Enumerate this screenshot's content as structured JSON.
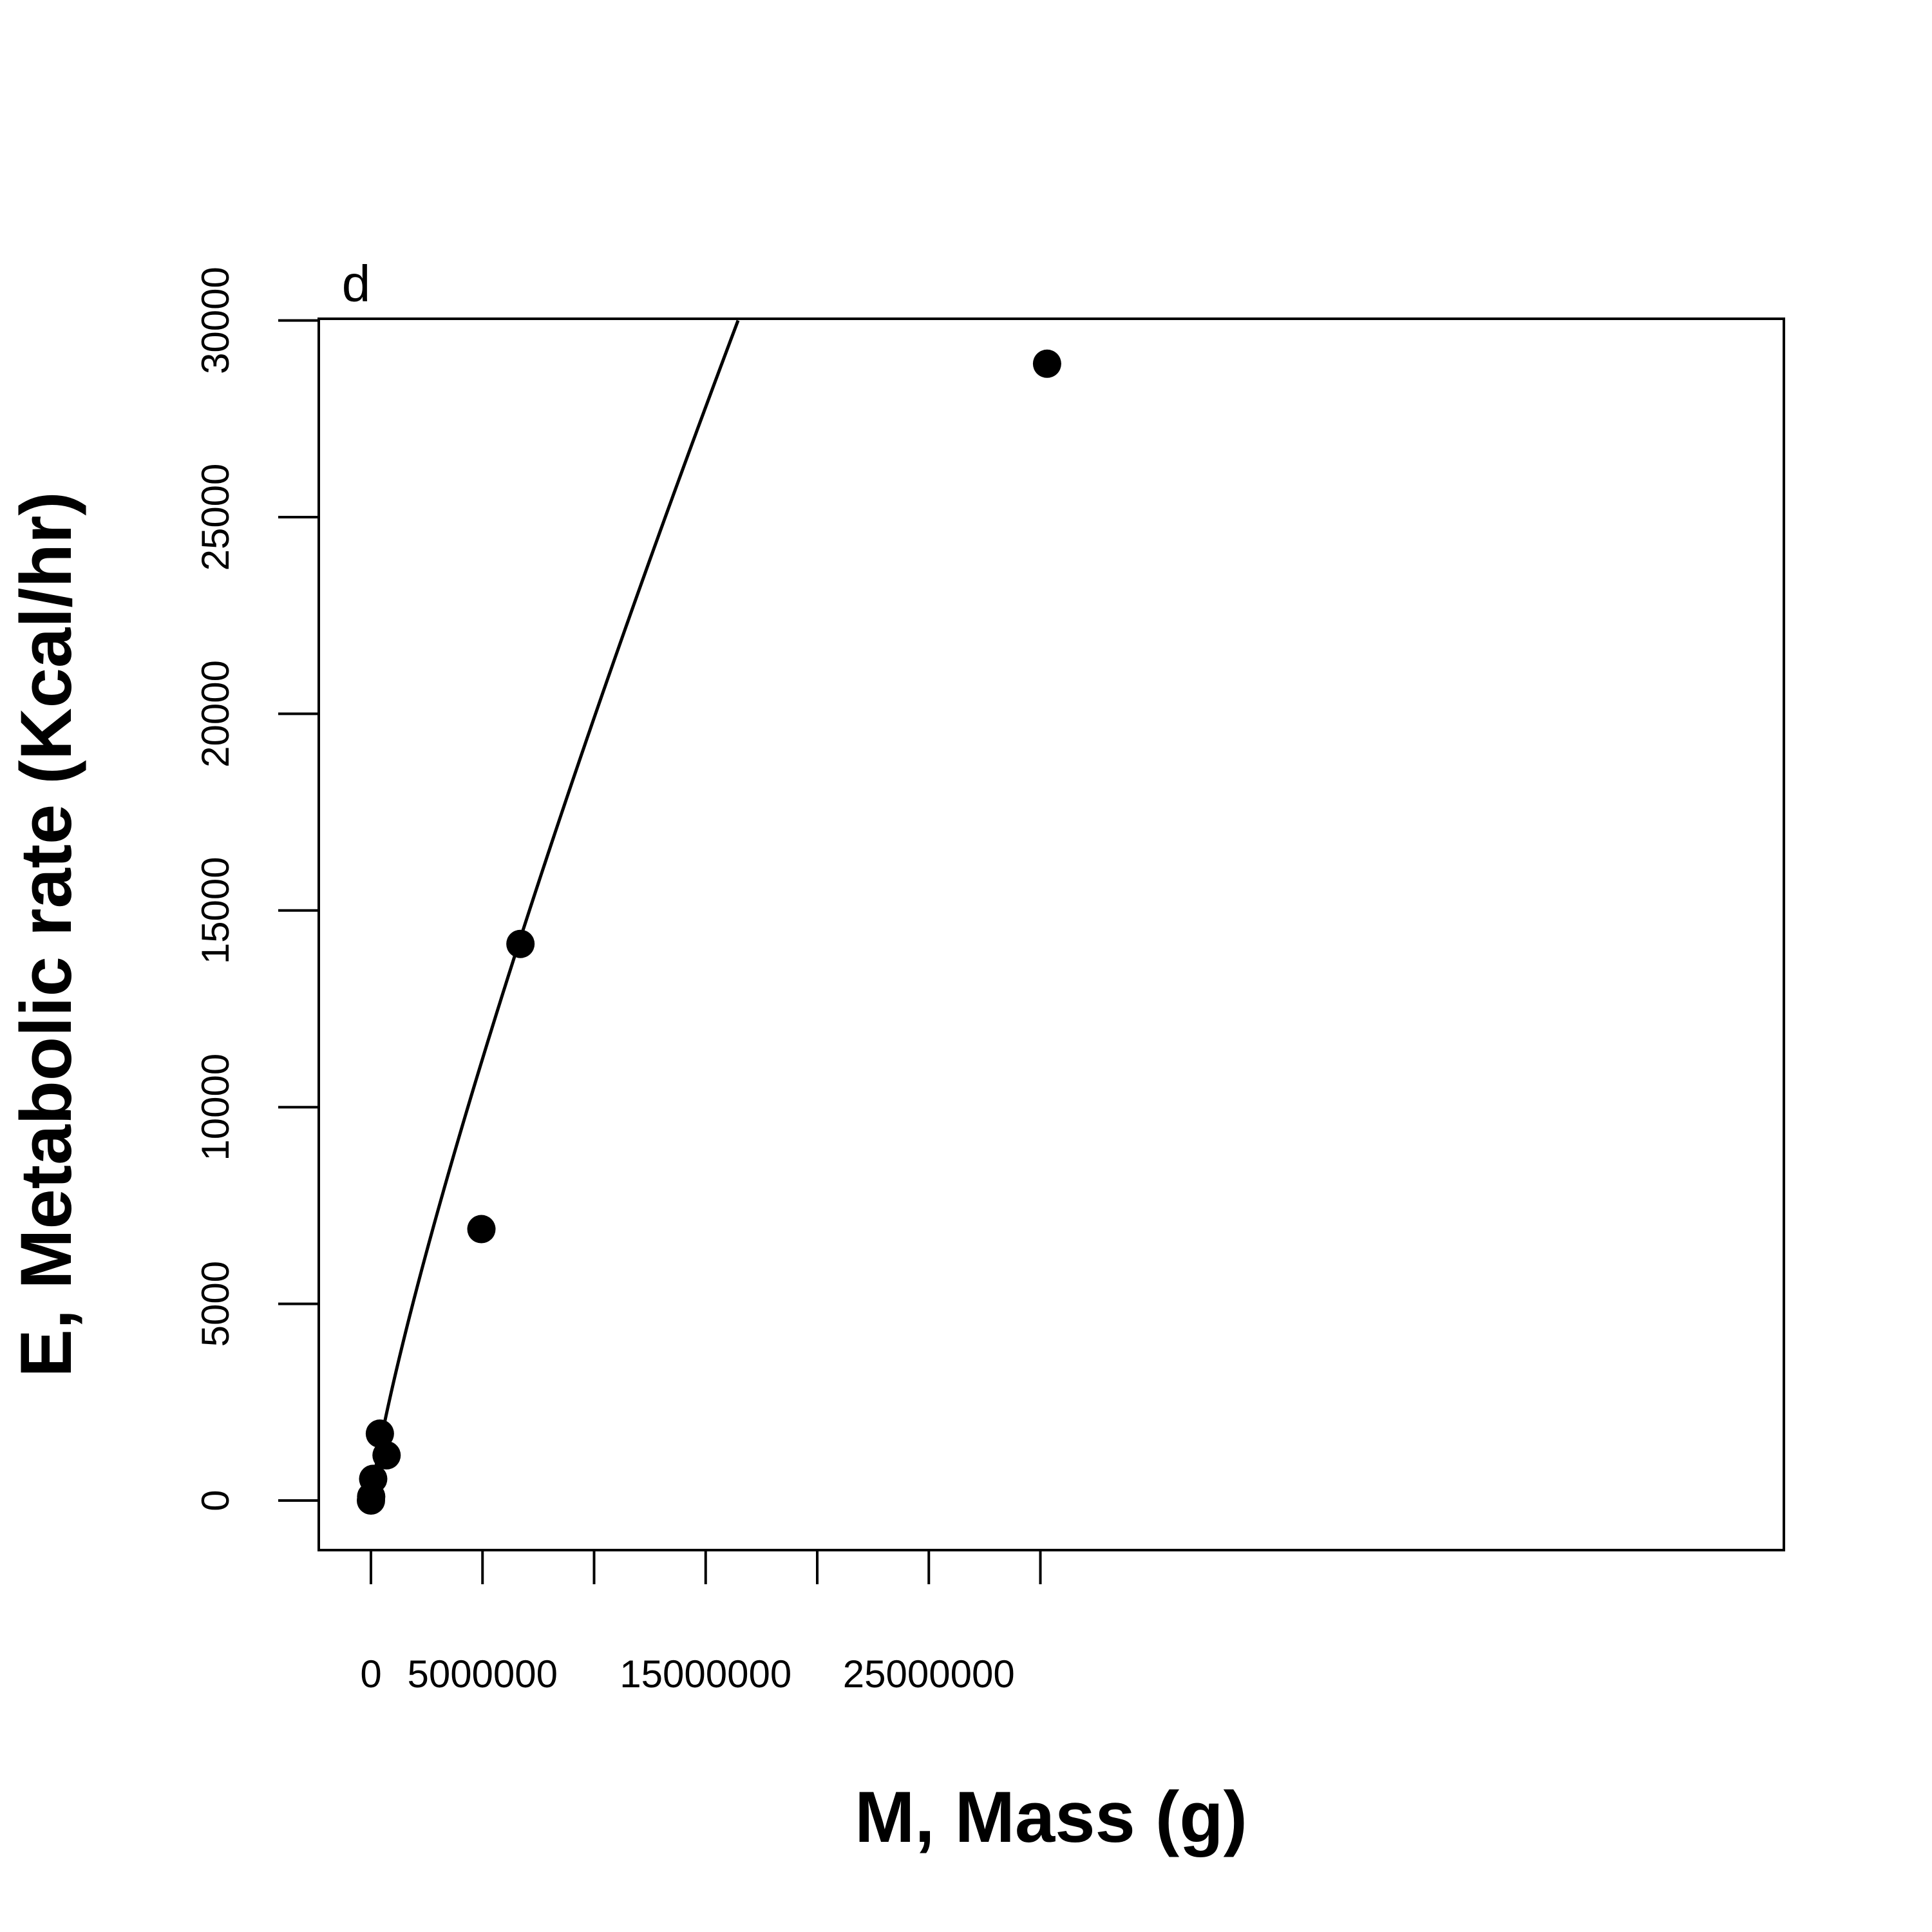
{
  "chart_data": {
    "type": "scatter",
    "panel_label": "d",
    "xlabel": "M, Mass (g)",
    "ylabel": "E, Metabolic rate (Kcal/hr)",
    "xlim": [
      -1200000,
      31500000
    ],
    "ylim": [
      -1150000,
      30000
    ],
    "x_ticks": [
      0,
      5000000,
      10000000,
      15000000,
      20000000,
      25000000,
      30000000
    ],
    "x_tick_labels": [
      "0",
      "5000000",
      "",
      "15000000",
      "",
      "25000000",
      ""
    ],
    "y_ticks": [
      0,
      5000,
      10000,
      15000,
      20000,
      25000,
      30000
    ],
    "y_tick_labels": [
      "0",
      "5000",
      "10000",
      "15000",
      "20000",
      "25000",
      "30000"
    ],
    "grid": false,
    "legend": "none",
    "series": [
      {
        "points": [
          {
            "x": 0,
            "y": 0
          },
          {
            "x": 10000,
            "y": 100
          },
          {
            "x": 100000,
            "y": 550
          },
          {
            "x": 400000,
            "y": 1700
          },
          {
            "x": 700000,
            "y": 1150
          },
          {
            "x": 4950000,
            "y": 6900
          },
          {
            "x": 6700000,
            "y": 14150
          },
          {
            "x": 30300000,
            "y": 28900
          }
        ]
      }
    ],
    "fit_curve": {
      "type": "power",
      "a": 0.0334,
      "b": 0.825,
      "x_range": [
        0,
        30000000
      ]
    },
    "colors": {
      "points": "#000000",
      "line": "#000000",
      "background": "#ffffff"
    }
  }
}
